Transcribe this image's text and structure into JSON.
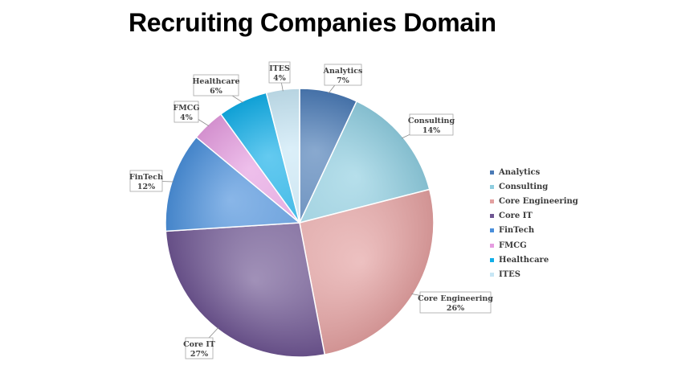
{
  "chart_data": {
    "type": "pie",
    "title": "Recruiting Companies Domain",
    "legend_position": "right",
    "slices": [
      {
        "label": "Analytics",
        "value": 7,
        "pct_label": "7%",
        "color": "#4a7ab5"
      },
      {
        "label": "Consulting",
        "value": 14,
        "pct_label": "14%",
        "color": "#8fcde0"
      },
      {
        "label": "Core Engineering",
        "value": 26,
        "pct_label": "26%",
        "color": "#e3a0a0"
      },
      {
        "label": "Core IT",
        "value": 27,
        "pct_label": "27%",
        "color": "#6e5592"
      },
      {
        "label": "FinTech",
        "value": 12,
        "pct_label": "12%",
        "color": "#4a8fdb"
      },
      {
        "label": "FMCG",
        "value": 4,
        "pct_label": "4%",
        "color": "#e59ce0"
      },
      {
        "label": "Healthcare",
        "value": 6,
        "pct_label": "6%",
        "color": "#10aee8"
      },
      {
        "label": "ITES",
        "value": 4,
        "pct_label": "4%",
        "color": "#c7e6f5"
      }
    ]
  }
}
